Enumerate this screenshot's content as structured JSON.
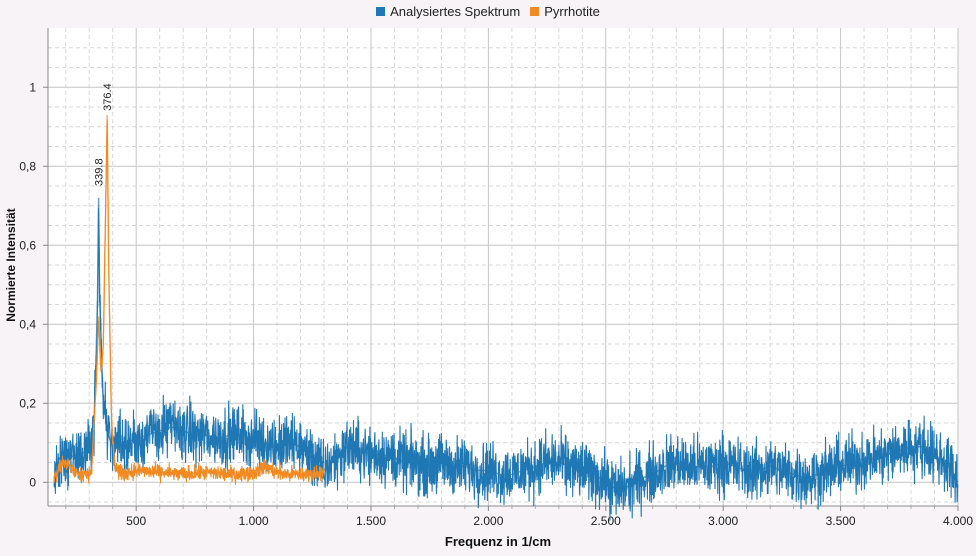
{
  "legend": {
    "items": [
      {
        "label": "Analysiertes Spektrum",
        "color": "#1f77b4"
      },
      {
        "label": "Pyrrhotite",
        "color": "#f28a22"
      }
    ]
  },
  "chart_data": {
    "type": "line",
    "xlabel": "Frequenz in 1/cm",
    "ylabel": "Normierte Intensität",
    "xlim": [
      150,
      4000
    ],
    "ylim": [
      -0.06,
      1.15
    ],
    "x_ticks": [
      500,
      1000,
      1500,
      2000,
      2500,
      3000,
      3500,
      4000
    ],
    "x_tick_labels": [
      "500",
      "1.000",
      "1.500",
      "2.000",
      "2.500",
      "3.000",
      "3.500",
      "4.000"
    ],
    "y_ticks": [
      0,
      0.2,
      0.4,
      0.6,
      0.8,
      1
    ],
    "y_tick_labels": [
      "0",
      "0,2",
      "0,4",
      "0,6",
      "0,8",
      "1"
    ],
    "grid": true,
    "legend_position": "top-center",
    "annotations": [
      {
        "x": 339.8,
        "y": 0.74,
        "text": "339.8"
      },
      {
        "x": 376.4,
        "y": 0.93,
        "text": "376.4"
      }
    ],
    "series": [
      {
        "name": "Analysiertes Spektrum",
        "color": "#1f77b4",
        "noise": 0.045,
        "x": [
          150,
          170,
          200,
          250,
          300,
          320,
          335,
          339.8,
          345,
          360,
          380,
          400,
          450,
          500,
          550,
          600,
          650,
          700,
          750,
          800,
          850,
          900,
          950,
          1000,
          1050,
          1100,
          1150,
          1200,
          1250,
          1300,
          1350,
          1400,
          1450,
          1500,
          1550,
          1600,
          1650,
          1700,
          1750,
          1800,
          1850,
          1900,
          1950,
          2000,
          2050,
          2100,
          2150,
          2200,
          2250,
          2300,
          2350,
          2400,
          2450,
          2500,
          2550,
          2600,
          2650,
          2700,
          2750,
          2800,
          2850,
          2900,
          2950,
          3000,
          3050,
          3100,
          3150,
          3200,
          3250,
          3300,
          3350,
          3400,
          3450,
          3500,
          3550,
          3600,
          3650,
          3700,
          3750,
          3800,
          3850,
          3900,
          3950,
          4000
        ],
        "y": [
          0.0,
          0.04,
          0.06,
          0.07,
          0.08,
          0.12,
          0.45,
          0.72,
          0.45,
          0.2,
          0.12,
          0.09,
          0.1,
          0.11,
          0.12,
          0.13,
          0.14,
          0.13,
          0.12,
          0.12,
          0.11,
          0.12,
          0.12,
          0.11,
          0.1,
          0.09,
          0.1,
          0.09,
          0.06,
          0.03,
          0.06,
          0.09,
          0.08,
          0.07,
          0.07,
          0.06,
          0.05,
          0.05,
          0.04,
          0.05,
          0.04,
          0.04,
          0.03,
          0.03,
          0.02,
          0.02,
          0.03,
          0.04,
          0.05,
          0.05,
          0.04,
          0.03,
          0.02,
          0.0,
          -0.02,
          -0.01,
          0.01,
          0.02,
          0.04,
          0.05,
          0.04,
          0.04,
          0.04,
          0.05,
          0.04,
          0.03,
          0.03,
          0.04,
          0.03,
          0.02,
          0.01,
          0.02,
          0.03,
          0.04,
          0.05,
          0.06,
          0.06,
          0.07,
          0.08,
          0.09,
          0.09,
          0.07,
          0.05,
          0.0
        ]
      },
      {
        "name": "Pyrrhotite",
        "color": "#f28a22",
        "noise": 0.012,
        "x": [
          150,
          180,
          200,
          230,
          260,
          290,
          310,
          320,
          330,
          339.8,
          350,
          360,
          370,
          376.4,
          383,
          395,
          410,
          440,
          500,
          600,
          700,
          800,
          900,
          1000,
          1050,
          1100,
          1150,
          1200,
          1250,
          1300
        ],
        "y": [
          0.01,
          0.04,
          0.05,
          0.03,
          0.02,
          0.02,
          0.03,
          0.15,
          0.25,
          0.42,
          0.28,
          0.35,
          0.7,
          0.93,
          0.55,
          0.15,
          0.04,
          0.02,
          0.03,
          0.025,
          0.02,
          0.025,
          0.02,
          0.025,
          0.04,
          0.025,
          0.02,
          0.02,
          0.02,
          0.03
        ]
      }
    ]
  }
}
